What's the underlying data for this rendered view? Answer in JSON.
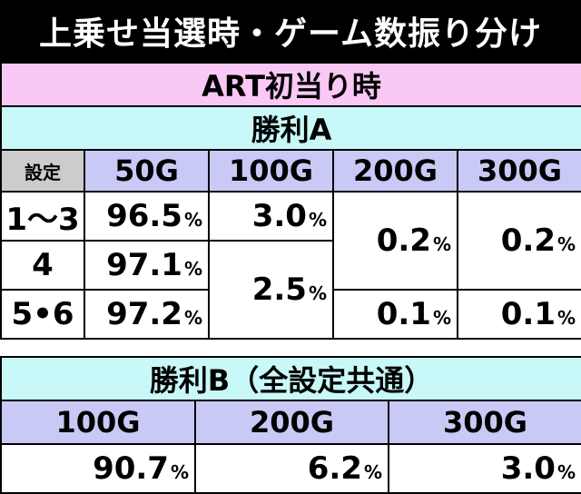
{
  "title": "上乗せ当選時・ゲーム数振り分け",
  "section": "ART初当り時",
  "win_a": {
    "title": "勝利A",
    "setting_label": "設定",
    "columns": [
      "50G",
      "100G",
      "200G",
      "300G"
    ],
    "rows": [
      {
        "setting": "1〜3",
        "g50": "96.5",
        "g100": "3.0"
      },
      {
        "setting": "4",
        "g50": "97.1"
      },
      {
        "setting": "5•6",
        "g50": "97.2"
      }
    ],
    "g100_merged_4_6": "2.5",
    "g200_merged_1_4": "0.2",
    "g300_merged_1_4": "0.2",
    "g200_row56": "0.1",
    "g300_row56": "0.1",
    "pct": "%"
  },
  "win_b": {
    "title": "勝利B（全設定共通）",
    "columns": [
      "100G",
      "200G",
      "300G"
    ],
    "values": [
      "90.7",
      "6.2",
      "3.0"
    ]
  },
  "colors": {
    "title_bg": "#000000",
    "section_bg": "#f9c8f5",
    "subsection_bg": "#c8f8f8",
    "header_bg": "#c9c9f6",
    "setting_header_bg": "#cccccc"
  }
}
